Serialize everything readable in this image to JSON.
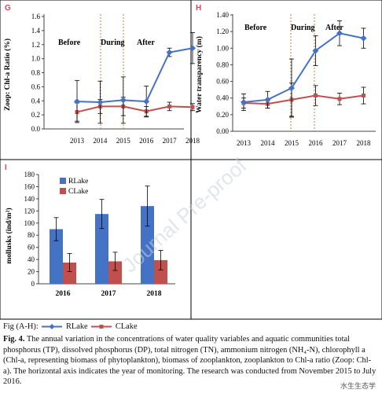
{
  "colors": {
    "rlake": "#4472c4",
    "clake": "#c0504d",
    "during_line": "#d9792b",
    "panel_border": "#000000"
  },
  "panels": {
    "G": {
      "letter": "G",
      "letter_color": "#e8405a",
      "ylabel": "Zoop: Chl-a Ratio (%)",
      "yticks": [
        "0.0",
        "0.2",
        "0.4",
        "0.6",
        "0.8",
        "1.0",
        "1.2",
        "1.4",
        "1.6"
      ],
      "xticks": [
        "2013",
        "2014",
        "2015",
        "2016",
        "2017",
        "2018"
      ],
      "periods": [
        "Before",
        "During",
        "After"
      ]
    },
    "H": {
      "letter": "H",
      "letter_color": "#e8405a",
      "ylabel": "Water transparency (m)",
      "yticks": [
        "0.00",
        "0.20",
        "0.40",
        "0.60",
        "0.80",
        "1.00",
        "1.20",
        "1.40"
      ],
      "xticks": [
        "2013",
        "2014",
        "2015",
        "2016",
        "2017",
        "2018"
      ],
      "periods": [
        "Before",
        "During",
        "After"
      ]
    },
    "I": {
      "letter": "I",
      "letter_color": "#e8405a",
      "ylabel": "mollusks (ind/m²)",
      "yticks": [
        "0",
        "20",
        "40",
        "60",
        "80",
        "100",
        "120",
        "140",
        "160",
        "180"
      ],
      "xticks": [
        "2016",
        "2017",
        "2018"
      ],
      "legend": [
        "RLake",
        "CLake"
      ]
    }
  },
  "chart_data": [
    {
      "type": "line",
      "panel": "G",
      "x": [
        2013,
        2014,
        2015,
        2016,
        2017,
        2018
      ],
      "ylim": [
        0,
        1.6
      ],
      "ylabel": "Zoop: Chl-a Ratio (%)",
      "during_between": [
        2015,
        2016
      ],
      "series": [
        {
          "name": "RLake",
          "values": [
            0.39,
            0.38,
            0.41,
            0.39,
            1.09,
            1.15
          ],
          "err": [
            0.3,
            0.3,
            0.33,
            0.22,
            0.06,
            0.22
          ]
        },
        {
          "name": "CLake",
          "values": [
            0.24,
            0.32,
            0.32,
            0.25,
            0.32,
            0.31
          ],
          "err": [
            0.13,
            0.1,
            0.13,
            0.07,
            0.06,
            0.05
          ]
        }
      ]
    },
    {
      "type": "line",
      "panel": "H",
      "x": [
        2013,
        2014,
        2015,
        2016,
        2017,
        2018
      ],
      "ylim": [
        0,
        1.4
      ],
      "ylabel": "Water transparency (m)",
      "during_between": [
        2015,
        2016
      ],
      "series": [
        {
          "name": "RLake",
          "values": [
            0.35,
            0.38,
            0.52,
            0.97,
            1.18,
            1.12
          ],
          "err": [
            0.1,
            0.1,
            0.35,
            0.18,
            0.15,
            0.12
          ]
        },
        {
          "name": "CLake",
          "values": [
            0.34,
            0.33,
            0.38,
            0.43,
            0.39,
            0.43
          ],
          "err": [
            0.06,
            0.05,
            0.2,
            0.12,
            0.07,
            0.1
          ]
        }
      ]
    },
    {
      "type": "bar",
      "panel": "I",
      "categories": [
        "2016",
        "2017",
        "2018"
      ],
      "ylim": [
        0,
        180
      ],
      "ylabel": "mollusks (ind/m²)",
      "series": [
        {
          "name": "RLake",
          "values": [
            90,
            115,
            128
          ],
          "err": [
            19,
            24,
            33
          ]
        },
        {
          "name": "CLake",
          "values": [
            35,
            37,
            39
          ],
          "err": [
            15,
            15,
            16
          ]
        }
      ]
    }
  ],
  "legend_line": {
    "prefix": "Fig (A-H):",
    "rlake": "RLake",
    "clake": "CLake"
  },
  "caption": {
    "label": "Fig. 4.",
    "text": " The annual variation in the concentrations of water quality variables and aquatic communities total phosphorus (TP), dissolved phosphorus (DP), total nitrogen (TN), ammonium nitrogen (NH₄-N), chlorophyll a (Chl-a, representing biomass of phytoplankton), biomass of zooplankton, zooplankton to Chl-a ratio (Zoop: Chl-a). The horizontal axis indicates the year of monitoring. The research was conducted from November 2015 to July 2016."
  },
  "watermark": "水生生态学",
  "draft_watermark": "Journal Pre-proof"
}
